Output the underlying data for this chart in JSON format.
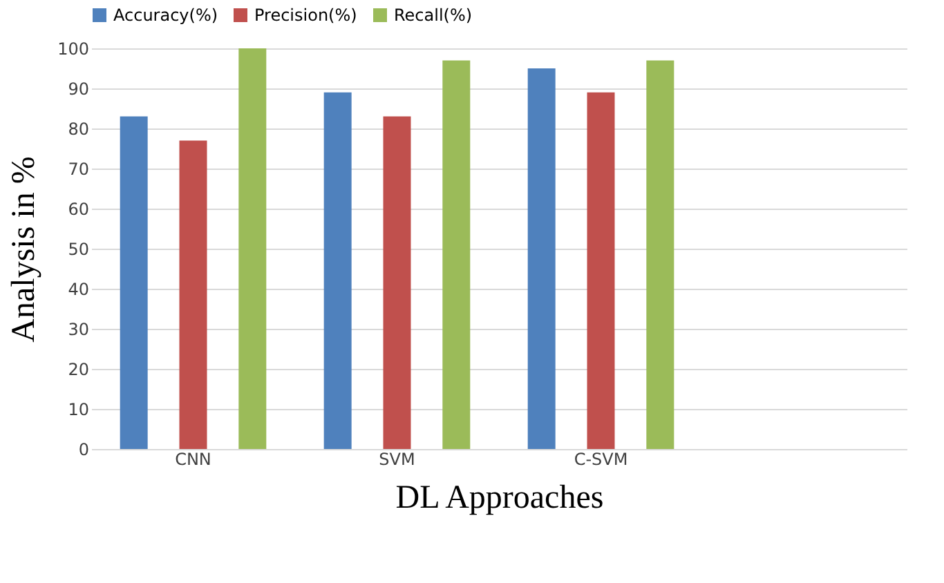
{
  "chart_data": {
    "type": "bar",
    "xlabel": "DL Approaches",
    "ylabel": "Analysis in %",
    "categories": [
      "CNN",
      "SVM",
      "C-SVM",
      null
    ],
    "series": [
      {
        "name": "Accuracy(%)",
        "color": "#4f81bd",
        "values": [
          83,
          89,
          95,
          null
        ]
      },
      {
        "name": "Precision(%)",
        "color": "#c0504d",
        "values": [
          77,
          83,
          89,
          null
        ]
      },
      {
        "name": "Recall(%)",
        "color": "#9bbb59",
        "values": [
          100,
          97,
          97,
          null
        ]
      }
    ],
    "ylim": [
      0,
      100
    ],
    "yticks": [
      0,
      10,
      20,
      30,
      40,
      50,
      60,
      70,
      80,
      90,
      100
    ],
    "grid": "y",
    "legend": "top"
  }
}
